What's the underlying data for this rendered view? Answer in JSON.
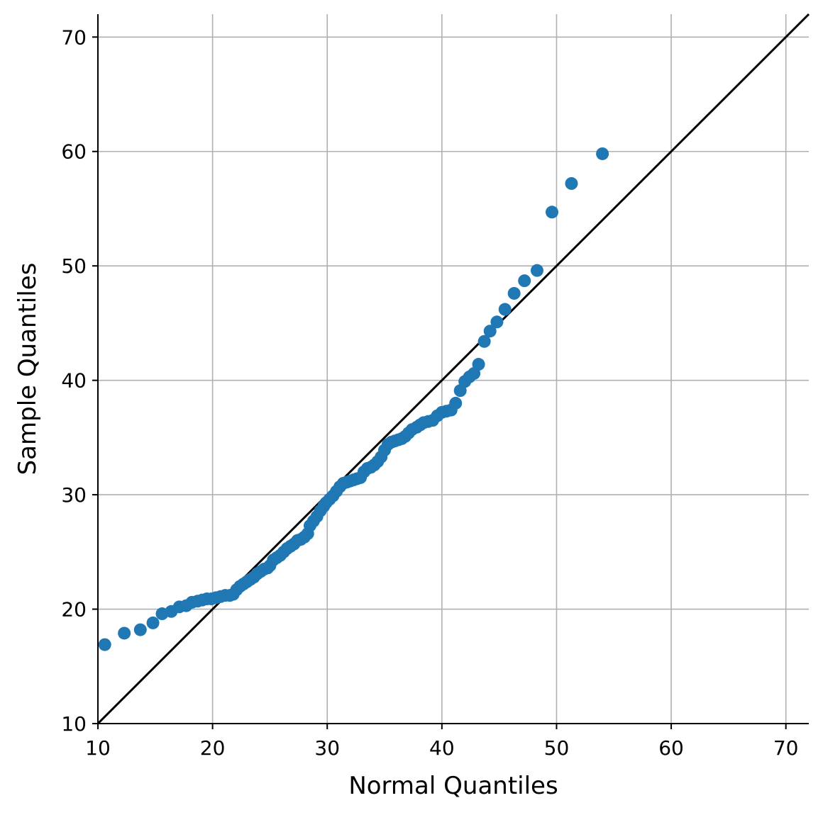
{
  "chart_data": {
    "type": "scatter",
    "title": "",
    "xlabel": "Normal Quantiles",
    "ylabel": "Sample Quantiles",
    "xlim": [
      10,
      72
    ],
    "ylim": [
      10,
      72
    ],
    "xticks": [
      "10",
      "20",
      "30",
      "40",
      "50",
      "60",
      "70"
    ],
    "yticks": [
      "10",
      "20",
      "30",
      "40",
      "50",
      "60",
      "70"
    ],
    "grid": true,
    "reference_line": {
      "from": [
        10,
        10
      ],
      "to": [
        72,
        72
      ],
      "color": "#000000"
    },
    "point_color": "#1f77b4",
    "series": [
      {
        "points": [
          [
            10.6,
            16.9
          ],
          [
            12.3,
            17.9
          ],
          [
            13.7,
            18.2
          ],
          [
            14.8,
            18.8
          ],
          [
            15.6,
            19.6
          ],
          [
            16.4,
            19.8
          ],
          [
            17.1,
            20.2
          ],
          [
            17.7,
            20.3
          ],
          [
            18.2,
            20.6
          ],
          [
            18.7,
            20.7
          ],
          [
            19.1,
            20.8
          ],
          [
            19.5,
            20.9
          ],
          [
            19.9,
            20.9
          ],
          [
            20.3,
            21.0
          ],
          [
            20.7,
            21.1
          ],
          [
            21.1,
            21.2
          ],
          [
            21.5,
            21.2
          ],
          [
            21.8,
            21.3
          ],
          [
            22.1,
            21.7
          ],
          [
            22.4,
            22.0
          ],
          [
            22.7,
            22.2
          ],
          [
            23.0,
            22.4
          ],
          [
            23.3,
            22.6
          ],
          [
            23.6,
            22.8
          ],
          [
            23.9,
            23.1
          ],
          [
            24.2,
            23.3
          ],
          [
            24.5,
            23.5
          ],
          [
            24.8,
            23.6
          ],
          [
            25.0,
            23.8
          ],
          [
            25.3,
            24.3
          ],
          [
            25.6,
            24.5
          ],
          [
            25.9,
            24.7
          ],
          [
            26.2,
            25.0
          ],
          [
            26.5,
            25.3
          ],
          [
            26.8,
            25.5
          ],
          [
            27.1,
            25.7
          ],
          [
            27.4,
            26.0
          ],
          [
            27.7,
            26.1
          ],
          [
            28.0,
            26.3
          ],
          [
            28.3,
            26.6
          ],
          [
            28.5,
            27.3
          ],
          [
            28.8,
            27.7
          ],
          [
            29.1,
            28.1
          ],
          [
            29.4,
            28.6
          ],
          [
            29.7,
            29.0
          ],
          [
            29.9,
            29.3
          ],
          [
            30.2,
            29.6
          ],
          [
            30.5,
            29.9
          ],
          [
            30.8,
            30.3
          ],
          [
            31.1,
            30.7
          ],
          [
            31.4,
            31.0
          ],
          [
            31.7,
            31.1
          ],
          [
            32.0,
            31.2
          ],
          [
            32.3,
            31.3
          ],
          [
            32.6,
            31.4
          ],
          [
            32.9,
            31.5
          ],
          [
            33.2,
            32.0
          ],
          [
            33.5,
            32.3
          ],
          [
            33.8,
            32.4
          ],
          [
            34.1,
            32.6
          ],
          [
            34.4,
            32.9
          ],
          [
            34.7,
            33.3
          ],
          [
            35.0,
            33.9
          ],
          [
            35.3,
            34.4
          ],
          [
            35.6,
            34.6
          ],
          [
            35.9,
            34.7
          ],
          [
            36.2,
            34.8
          ],
          [
            36.5,
            34.9
          ],
          [
            36.8,
            35.1
          ],
          [
            37.1,
            35.4
          ],
          [
            37.4,
            35.7
          ],
          [
            37.8,
            35.9
          ],
          [
            38.1,
            36.1
          ],
          [
            38.4,
            36.3
          ],
          [
            38.8,
            36.4
          ],
          [
            39.2,
            36.5
          ],
          [
            39.6,
            36.9
          ],
          [
            40.0,
            37.2
          ],
          [
            40.4,
            37.3
          ],
          [
            40.8,
            37.4
          ],
          [
            41.2,
            38.0
          ],
          [
            41.6,
            39.1
          ],
          [
            42.0,
            39.9
          ],
          [
            42.4,
            40.3
          ],
          [
            42.8,
            40.6
          ],
          [
            43.2,
            41.4
          ],
          [
            43.7,
            43.4
          ],
          [
            44.2,
            44.3
          ],
          [
            44.8,
            45.1
          ],
          [
            45.5,
            46.2
          ],
          [
            46.3,
            47.6
          ],
          [
            47.2,
            48.7
          ],
          [
            48.3,
            49.6
          ],
          [
            49.6,
            54.7
          ],
          [
            51.3,
            57.2
          ],
          [
            54.0,
            59.8
          ]
        ]
      }
    ]
  }
}
